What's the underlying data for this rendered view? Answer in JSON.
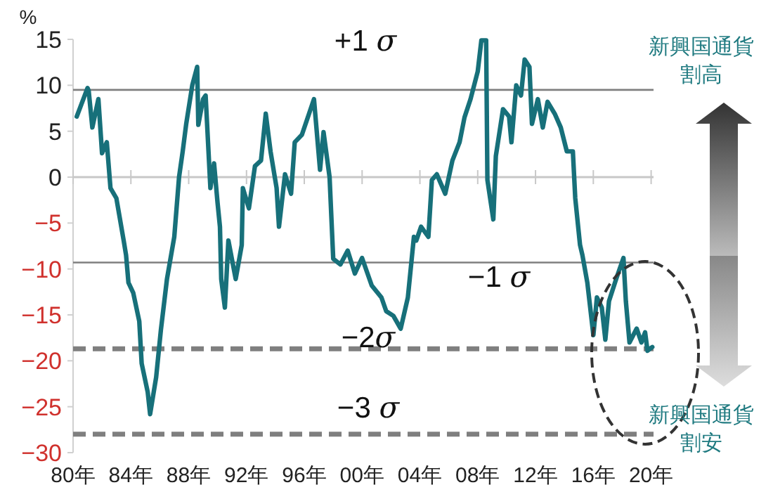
{
  "chart_data": {
    "type": "line",
    "ylabel": "%",
    "x": [
      "1980-04",
      "1981-01",
      "1981-02",
      "1981-05",
      "1981-10",
      "1982-01",
      "1982-05",
      "1982-08",
      "1983-01",
      "1983-07",
      "1983-09",
      "1983-11",
      "1984-03",
      "1984-08",
      "1984-10",
      "1985-03",
      "1985-05",
      "1985-10",
      "1986-02",
      "1986-07",
      "1987-01",
      "1987-05",
      "1987-08",
      "1987-11",
      "1988-04",
      "1988-08",
      "1988-09",
      "1989-01",
      "1989-03",
      "1989-07",
      "1989-10",
      "1990-01",
      "1990-03",
      "1990-04",
      "1990-07",
      "1990-10",
      "1991-04",
      "1991-09",
      "1991-10",
      "1992-03",
      "1992-08",
      "1993-01",
      "1993-05",
      "1993-09",
      "1994-02",
      "1994-04",
      "1994-09",
      "1995-02",
      "1995-05",
      "1995-11",
      "1996-05",
      "1996-09",
      "1997-02",
      "1997-05",
      "1997-10",
      "1998-01",
      "1998-07",
      "1999-01",
      "1999-07",
      "2000-01",
      "2000-09",
      "2001-05",
      "2001-09",
      "2002-03",
      "2002-09",
      "2003-03",
      "2003-08",
      "2003-10",
      "2004-02",
      "2004-08",
      "2004-11",
      "2005-03",
      "2005-10",
      "2006-04",
      "2006-10",
      "2007-02",
      "2007-07",
      "2008-01",
      "2008-04",
      "2008-08",
      "2008-09",
      "2009-02",
      "2009-04",
      "2009-10",
      "2010-03",
      "2010-05",
      "2010-09",
      "2011-01",
      "2011-04",
      "2011-08",
      "2011-10",
      "2012-03",
      "2012-07",
      "2012-11",
      "2013-05",
      "2013-10",
      "2014-03",
      "2014-08",
      "2014-10",
      "2015-02",
      "2015-04",
      "2015-08",
      "2016-01",
      "2016-04",
      "2016-08",
      "2016-11",
      "2017-02",
      "2017-08",
      "2018-02",
      "2018-04",
      "2018-07",
      "2019-01",
      "2019-05",
      "2019-08",
      "2019-10",
      "2020-02"
    ],
    "values": [
      6.6,
      9.7,
      9.4,
      5.4,
      8.5,
      2.6,
      3.8,
      -1.2,
      -2.3,
      -6.9,
      -8.5,
      -11.5,
      -12.6,
      -15.7,
      -20.3,
      -23.4,
      -25.8,
      -21.8,
      -16.6,
      -11.1,
      -6.5,
      0,
      2.8,
      5.8,
      10,
      12.0,
      5.7,
      8.5,
      8.9,
      -1.2,
      1.5,
      -2.8,
      -5.4,
      -11.1,
      -14.2,
      -6.9,
      -11.1,
      -7.4,
      -1.2,
      -3.4,
      1.2,
      1.8,
      6.9,
      2.8,
      -1.2,
      -5.4,
      0.3,
      -1.8,
      3.8,
      4.6,
      6.9,
      8.5,
      0.8,
      4.9,
      0,
      -8.9,
      -9.5,
      -8.0,
      -10.5,
      -8.8,
      -11.8,
      -13.1,
      -14.6,
      -15.1,
      -16.5,
      -13.1,
      -6.5,
      -6.9,
      -5.4,
      -6.5,
      -0.3,
      0.3,
      -1.8,
      1.8,
      3.8,
      6.5,
      8.5,
      11.5,
      14.9,
      14.9,
      -0.3,
      -4.6,
      2.3,
      7.4,
      6.6,
      3.8,
      10,
      8.9,
      12.8,
      12.0,
      5.8,
      8.5,
      5.4,
      8.2,
      6.9,
      5.4,
      2.8,
      2.8,
      -2.3,
      -7.4,
      -8.5,
      -11.5,
      -17.2,
      -13.1,
      -14.2,
      -17.7,
      -13.5,
      -11.1,
      -8.8,
      -13.5,
      -18.0,
      -16.5,
      -18.0,
      -16.9,
      -18.9,
      -18.5
    ],
    "color": "#17707a",
    "xlim": [
      "1980-01",
      "2020-03"
    ],
    "xticks": [
      {
        "value": "1980",
        "label": "80年"
      },
      {
        "value": "1984",
        "label": "84年"
      },
      {
        "value": "1988",
        "label": "88年"
      },
      {
        "value": "1992",
        "label": "92年"
      },
      {
        "value": "1996",
        "label": "96年"
      },
      {
        "value": "2000",
        "label": "00年"
      },
      {
        "value": "2004",
        "label": "04年"
      },
      {
        "value": "2008",
        "label": "08年"
      },
      {
        "value": "2012",
        "label": "12年"
      },
      {
        "value": "2016",
        "label": "16年"
      },
      {
        "value": "2020",
        "label": "20年"
      }
    ],
    "ylim": [
      -30,
      15
    ],
    "yticks": [
      15,
      10,
      5,
      0,
      -5,
      -10,
      -15,
      -20,
      -25,
      -30
    ],
    "ref_lines": [
      {
        "axis": "y",
        "value": 9.5,
        "label": "+1 σ",
        "color": "#7f7f7f",
        "line_style": "solid"
      },
      {
        "axis": "y",
        "value": -9.3,
        "label": "−1 σ",
        "color": "#7f7f7f",
        "line_style": "solid"
      },
      {
        "axis": "y",
        "value": -18.7,
        "label": "−2σ",
        "color": "#7f7f7f",
        "line_style": "dashed"
      },
      {
        "axis": "y",
        "value": -28.0,
        "label": "−3 σ",
        "color": "#7f7f7f",
        "line_style": "dashed"
      }
    ],
    "annotations": [
      "新興国通貨割高",
      "新興国通貨割安"
    ]
  }
}
